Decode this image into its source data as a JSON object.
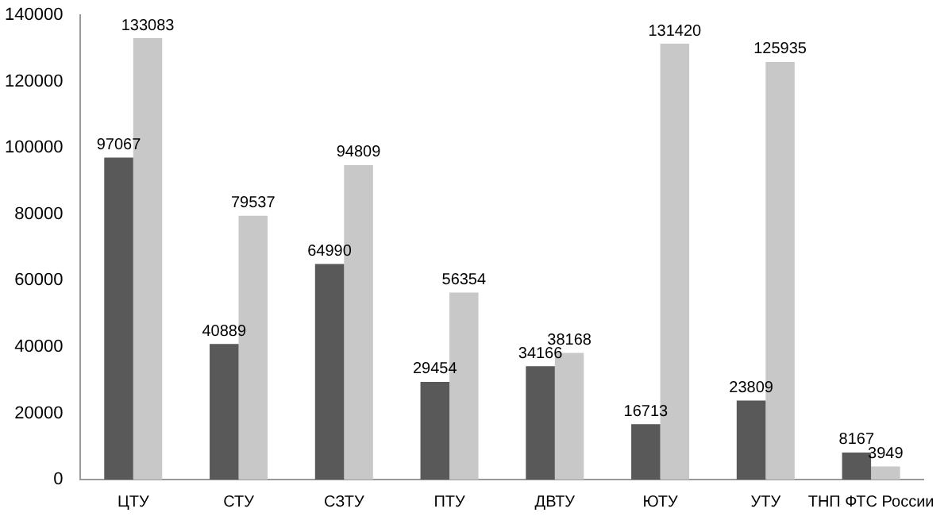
{
  "chart_data": {
    "type": "bar",
    "categories": [
      "ЦТУ",
      "СТУ",
      "СЗТУ",
      "ПТУ",
      "ДВТУ",
      "ЮТУ",
      "УТУ",
      "ТНП ФТС России"
    ],
    "series": [
      {
        "color": "#595959",
        "values": [
          97067,
          40889,
          64990,
          29454,
          34166,
          16713,
          23809,
          8167
        ]
      },
      {
        "color": "#c8c8c8",
        "values": [
          133083,
          79537,
          94809,
          56354,
          38168,
          131420,
          125935,
          3949
        ]
      }
    ],
    "ylim": [
      0,
      140000
    ],
    "yticks": [
      0,
      20000,
      40000,
      60000,
      80000,
      100000,
      120000,
      140000
    ],
    "grid": false,
    "legend": false,
    "data_labels": true
  }
}
